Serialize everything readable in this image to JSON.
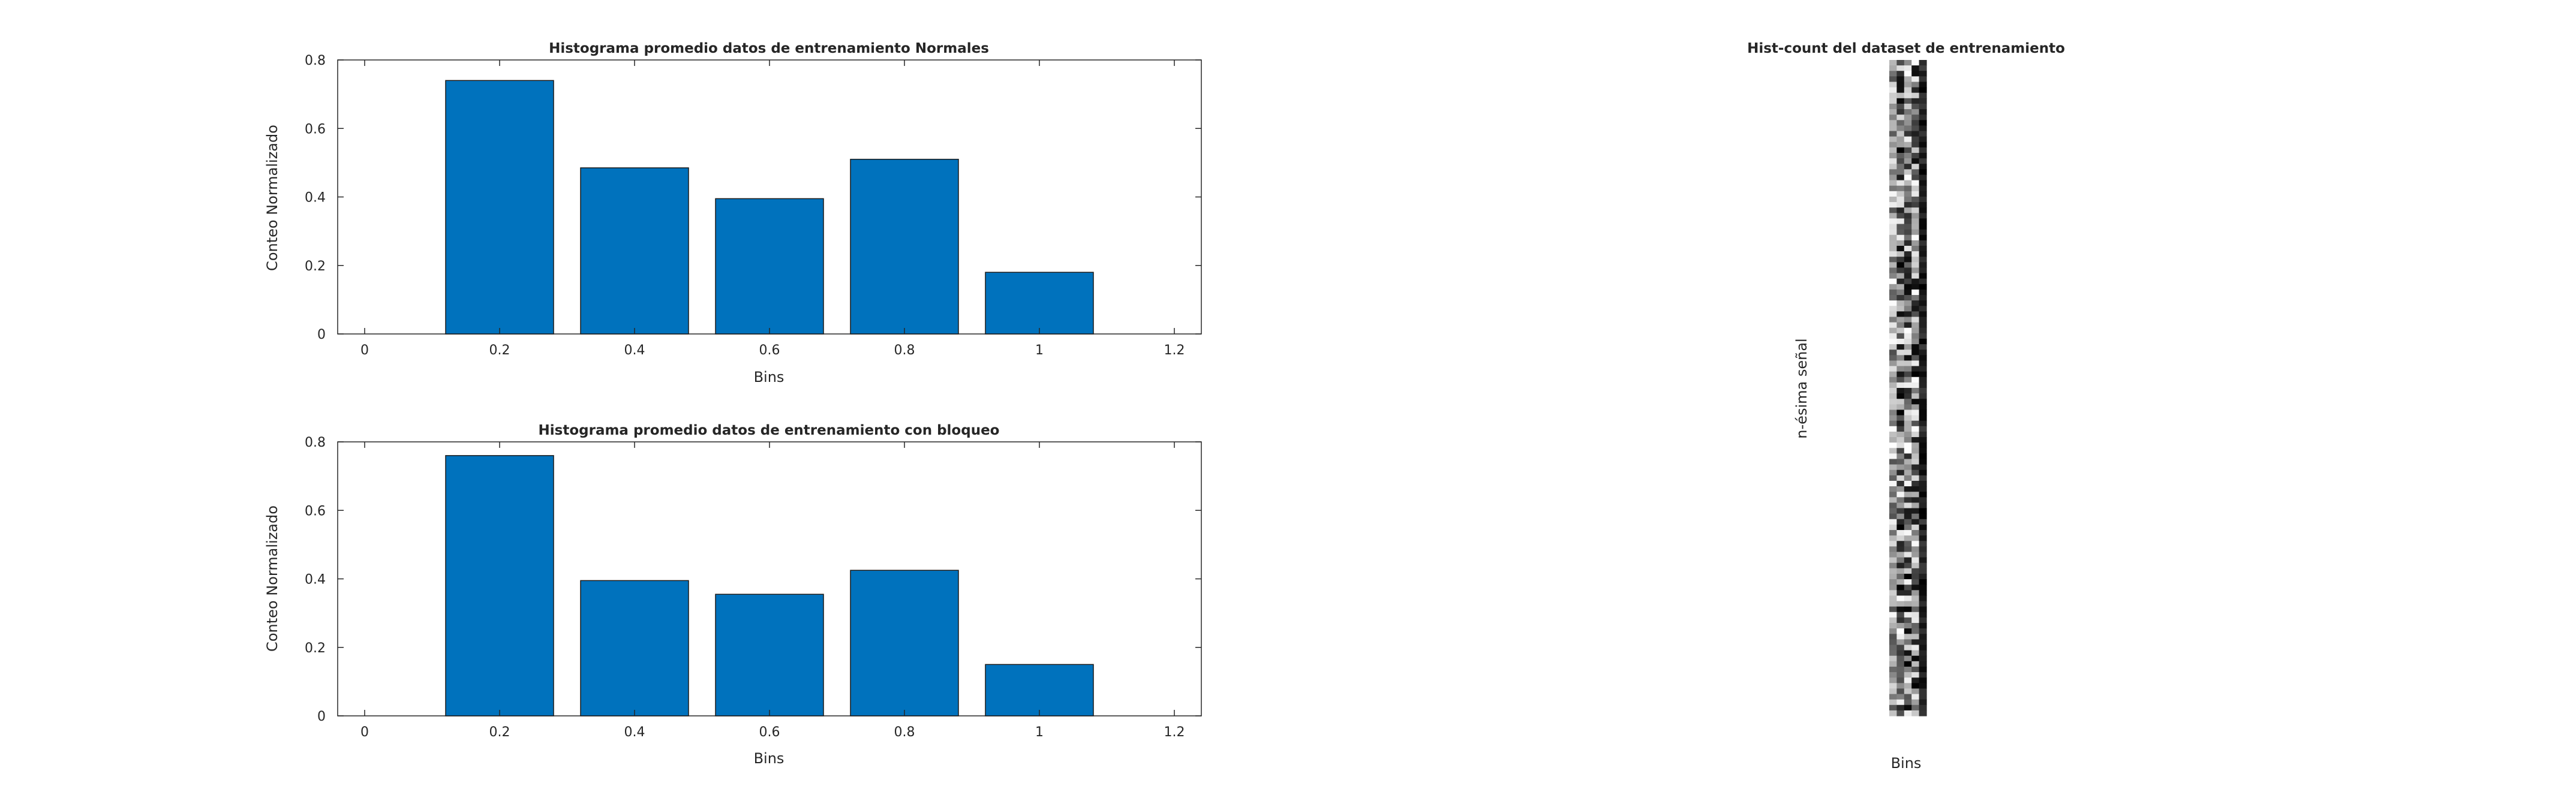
{
  "colors": {
    "bar_fill": "#0072bd",
    "bar_edge": "#1a1a1a",
    "axis": "#262626",
    "background": "#ffffff"
  },
  "chart_data": [
    {
      "type": "bar",
      "title": "Histograma promedio datos de entrenamiento Normales",
      "xlabel": "Bins",
      "ylabel": "Conteo Normalizado",
      "x": [
        0.2,
        0.4,
        0.6,
        0.8,
        1.0
      ],
      "values": [
        0.74,
        0.485,
        0.395,
        0.51,
        0.18
      ],
      "xlim": [
        -0.04,
        1.24
      ],
      "ylim": [
        0,
        0.8
      ],
      "xticks": [
        "0",
        "0.2",
        "0.4",
        "0.6",
        "0.8",
        "1",
        "1.2"
      ],
      "xtick_values": [
        0,
        0.2,
        0.4,
        0.6,
        0.8,
        1.0,
        1.2
      ],
      "yticks": [
        "0",
        "0.2",
        "0.4",
        "0.6",
        "0.8"
      ],
      "ytick_values": [
        0,
        0.2,
        0.4,
        0.6,
        0.8
      ],
      "grid": false
    },
    {
      "type": "bar",
      "title": "Histograma promedio datos de entrenamiento con bloqueo",
      "xlabel": "Bins",
      "ylabel": "Conteo Normalizado",
      "x": [
        0.2,
        0.4,
        0.6,
        0.8,
        1.0
      ],
      "values": [
        0.76,
        0.395,
        0.355,
        0.425,
        0.15
      ],
      "xlim": [
        -0.04,
        1.24
      ],
      "ylim": [
        0,
        0.8
      ],
      "xticks": [
        "0",
        "0.2",
        "0.4",
        "0.6",
        "0.8",
        "1",
        "1.2"
      ],
      "xtick_values": [
        0,
        0.2,
        0.4,
        0.6,
        0.8,
        1.0,
        1.2
      ],
      "yticks": [
        "0",
        "0.2",
        "0.4",
        "0.6",
        "0.8"
      ],
      "ytick_values": [
        0,
        0.2,
        0.4,
        0.6,
        0.8
      ],
      "grid": false
    },
    {
      "type": "heatmap",
      "title": "Hist-count del dataset de entrenamiento",
      "xlabel": "Bins",
      "ylabel": "n-ésima señal",
      "colormap": "gray",
      "columns": 5,
      "rows": 120,
      "seed": 7
    }
  ]
}
